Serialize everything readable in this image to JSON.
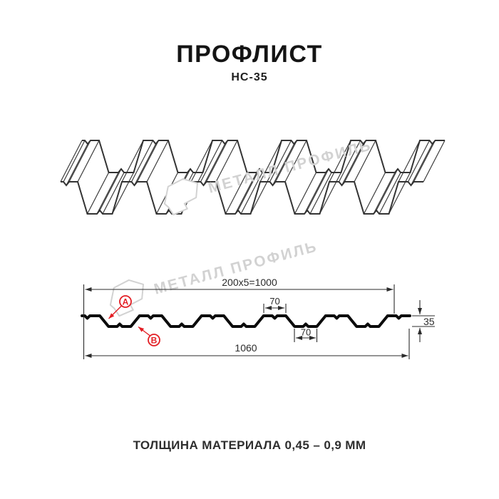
{
  "header": {
    "title": "ПРОФЛИСТ",
    "subtitle": "НС-35"
  },
  "watermark": {
    "text": "МЕТАЛЛ ПРОФИЛЬ",
    "color": "#d2d2d2"
  },
  "diagram": {
    "dim_top": "200x5=1000",
    "dim_top_flange": "70",
    "dim_bottom_flange": "70",
    "dim_overall_width": "1060",
    "dim_height": "35",
    "marker_a": "А",
    "marker_b": "В",
    "accent_color": "#e31e24",
    "line_color": "#2b2b2b"
  },
  "footer": {
    "caption": "ТОЛЩИНА МАТЕРИАЛА 0,45 – 0,9 ММ"
  }
}
